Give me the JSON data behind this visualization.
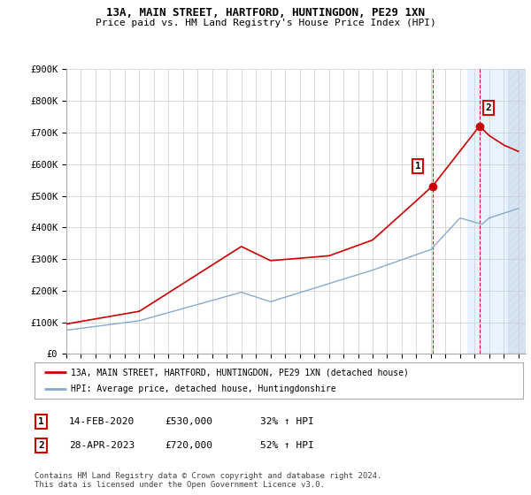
{
  "title": "13A, MAIN STREET, HARTFORD, HUNTINGDON, PE29 1XN",
  "subtitle": "Price paid vs. HM Land Registry's House Price Index (HPI)",
  "ylim": [
    0,
    900000
  ],
  "yticks": [
    0,
    100000,
    200000,
    300000,
    400000,
    500000,
    600000,
    700000,
    800000,
    900000
  ],
  "ytick_labels": [
    "£0",
    "£100K",
    "£200K",
    "£300K",
    "£400K",
    "£500K",
    "£600K",
    "£700K",
    "£800K",
    "£900K"
  ],
  "xlim_start": 1995.5,
  "xlim_end": 2026.5,
  "xticks": [
    1995,
    1996,
    1997,
    1998,
    1999,
    2000,
    2001,
    2002,
    2003,
    2004,
    2005,
    2006,
    2007,
    2008,
    2009,
    2010,
    2011,
    2012,
    2013,
    2014,
    2015,
    2016,
    2017,
    2018,
    2019,
    2020,
    2021,
    2022,
    2023,
    2024,
    2025,
    2026
  ],
  "line1_color": "#cc0000",
  "line2_color": "#88aacc",
  "transaction1_x": 2020.11,
  "transaction1_y": 530000,
  "transaction2_x": 2023.33,
  "transaction2_y": 720000,
  "forecast_start": 2024.0,
  "hatch_start": 2025.3,
  "xlim_end_val": 2026.5,
  "legend1_label": "13A, MAIN STREET, HARTFORD, HUNTINGDON, PE29 1XN (detached house)",
  "legend2_label": "HPI: Average price, detached house, Huntingdonshire",
  "note1_num": "1",
  "note1_date": "14-FEB-2020",
  "note1_price": "£530,000",
  "note1_hpi": "32% ↑ HPI",
  "note2_num": "2",
  "note2_date": "28-APR-2023",
  "note2_price": "£720,000",
  "note2_hpi": "52% ↑ HPI",
  "footer": "Contains HM Land Registry data © Crown copyright and database right 2024.\nThis data is licensed under the Open Government Licence v3.0.",
  "bg_color": "#ffffff",
  "plot_bg_color": "#ffffff",
  "grid_color": "#cccccc",
  "forecast_fill_color": "#ddeeff"
}
